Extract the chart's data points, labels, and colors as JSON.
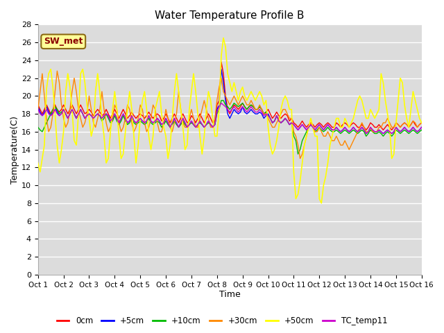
{
  "title": "Water Temperature Profile B",
  "xlabel": "Time",
  "ylabel": "Temperature(C)",
  "ylim": [
    0,
    28
  ],
  "xlim": [
    0,
    15
  ],
  "xtick_labels": [
    "Oct 1",
    "Oct 2",
    "Oct 3",
    "Oct 4",
    "Oct 5",
    "Oct 6",
    "Oct 7",
    "Oct 8",
    "Oct 9",
    "Oct 10",
    "Oct 11",
    "Oct 12",
    "Oct 13",
    "Oct 14",
    "Oct 15",
    "Oct 16"
  ],
  "ytick_values": [
    0,
    2,
    4,
    6,
    8,
    10,
    12,
    14,
    16,
    18,
    20,
    22,
    24,
    26,
    28
  ],
  "bg_color": "#dcdcdc",
  "grid_color": "#ffffff",
  "sw_met_label": "SW_met",
  "sw_met_text_color": "#8b0000",
  "sw_met_bg_color": "#ffff99",
  "sw_met_border_color": "#8b6914",
  "series_order": [
    "0cm",
    "+5cm",
    "+10cm",
    "+30cm",
    "+50cm",
    "TC_temp11"
  ],
  "colors": {
    "0cm": "#ff0000",
    "+5cm": "#0000ff",
    "+10cm": "#00bb00",
    "+30cm": "#ff8800",
    "+50cm": "#ffff00",
    "TC_temp11": "#cc00cc"
  },
  "linewidths": {
    "0cm": 1.0,
    "+5cm": 1.0,
    "+10cm": 1.0,
    "+30cm": 1.0,
    "+50cm": 1.2,
    "TC_temp11": 1.0
  },
  "data": {
    "t": [
      0.0,
      0.083,
      0.167,
      0.25,
      0.333,
      0.417,
      0.5,
      0.583,
      0.667,
      0.75,
      0.833,
      0.917,
      1.0,
      1.083,
      1.167,
      1.25,
      1.333,
      1.417,
      1.5,
      1.583,
      1.667,
      1.75,
      1.833,
      1.917,
      2.0,
      2.083,
      2.167,
      2.25,
      2.333,
      2.417,
      2.5,
      2.583,
      2.667,
      2.75,
      2.833,
      2.917,
      3.0,
      3.083,
      3.167,
      3.25,
      3.333,
      3.417,
      3.5,
      3.583,
      3.667,
      3.75,
      3.833,
      3.917,
      4.0,
      4.083,
      4.167,
      4.25,
      4.333,
      4.417,
      4.5,
      4.583,
      4.667,
      4.75,
      4.833,
      4.917,
      5.0,
      5.083,
      5.167,
      5.25,
      5.333,
      5.417,
      5.5,
      5.583,
      5.667,
      5.75,
      5.833,
      5.917,
      6.0,
      6.083,
      6.167,
      6.25,
      6.333,
      6.417,
      6.5,
      6.583,
      6.667,
      6.75,
      6.833,
      6.917,
      7.0,
      7.083,
      7.167,
      7.25,
      7.333,
      7.417,
      7.5,
      7.583,
      7.667,
      7.75,
      7.833,
      7.917,
      8.0,
      8.083,
      8.167,
      8.25,
      8.333,
      8.417,
      8.5,
      8.583,
      8.667,
      8.75,
      8.833,
      8.917,
      9.0,
      9.083,
      9.167,
      9.25,
      9.333,
      9.417,
      9.5,
      9.583,
      9.667,
      9.75,
      9.833,
      9.917,
      10.0,
      10.083,
      10.167,
      10.25,
      10.333,
      10.417,
      10.5,
      10.583,
      10.667,
      10.75,
      10.833,
      10.917,
      11.0,
      11.083,
      11.167,
      11.25,
      11.333,
      11.417,
      11.5,
      11.583,
      11.667,
      11.75,
      11.833,
      11.917,
      12.0,
      12.083,
      12.167,
      12.25,
      12.333,
      12.417,
      12.5,
      12.583,
      12.667,
      12.75,
      12.833,
      12.917,
      13.0,
      13.083,
      13.167,
      13.25,
      13.333,
      13.417,
      13.5,
      13.583,
      13.667,
      13.75,
      13.833,
      13.917,
      14.0,
      14.083,
      14.167,
      14.25,
      14.333,
      14.417,
      14.5,
      14.583,
      14.667,
      14.75,
      14.833,
      14.917,
      15.0
    ],
    "0cm": [
      19.0,
      18.5,
      18.0,
      18.5,
      19.0,
      18.5,
      18.0,
      18.5,
      19.0,
      18.5,
      18.2,
      18.5,
      19.0,
      18.5,
      18.0,
      18.5,
      19.0,
      18.5,
      18.0,
      18.5,
      19.0,
      18.5,
      18.0,
      18.2,
      18.5,
      18.2,
      17.8,
      18.2,
      18.5,
      18.2,
      17.8,
      18.0,
      18.5,
      18.0,
      17.5,
      18.0,
      18.5,
      18.0,
      17.5,
      18.0,
      18.5,
      18.0,
      17.5,
      17.8,
      18.2,
      17.8,
      17.5,
      17.8,
      18.0,
      17.8,
      17.5,
      17.8,
      18.2,
      17.8,
      17.5,
      17.8,
      18.0,
      17.8,
      17.2,
      17.5,
      18.0,
      17.5,
      17.0,
      17.5,
      18.0,
      17.5,
      17.0,
      17.5,
      18.0,
      17.5,
      17.0,
      17.2,
      17.8,
      17.5,
      17.0,
      17.5,
      18.0,
      17.5,
      17.0,
      17.5,
      18.0,
      17.5,
      17.0,
      17.2,
      19.0,
      19.5,
      23.8,
      22.5,
      20.0,
      18.5,
      18.0,
      18.5,
      19.0,
      18.8,
      18.5,
      18.8,
      19.2,
      18.8,
      18.5,
      18.8,
      19.0,
      18.8,
      18.5,
      18.5,
      18.8,
      18.5,
      18.0,
      18.2,
      18.5,
      18.0,
      17.5,
      17.8,
      18.2,
      17.8,
      17.5,
      17.8,
      18.0,
      17.8,
      17.2,
      17.5,
      17.0,
      16.8,
      16.5,
      16.8,
      17.2,
      16.8,
      16.5,
      16.8,
      17.0,
      16.8,
      16.5,
      16.8,
      17.0,
      16.8,
      16.5,
      16.8,
      17.0,
      16.8,
      16.5,
      16.5,
      17.0,
      16.8,
      16.5,
      16.8,
      17.0,
      16.8,
      16.5,
      16.8,
      17.0,
      16.8,
      16.5,
      16.5,
      16.8,
      16.5,
      16.2,
      16.5,
      17.0,
      16.8,
      16.5,
      16.5,
      16.8,
      16.5,
      16.2,
      16.5,
      16.8,
      16.5,
      16.2,
      16.5,
      17.0,
      16.8,
      16.5,
      16.8,
      17.0,
      16.8,
      16.5,
      16.8,
      17.2,
      16.8,
      16.5,
      16.8,
      17.0
    ],
    "+5cm": [
      18.8,
      18.2,
      17.8,
      18.2,
      18.8,
      18.2,
      17.8,
      18.2,
      18.8,
      18.2,
      17.8,
      18.0,
      18.5,
      18.0,
      17.5,
      18.0,
      18.5,
      18.0,
      17.5,
      18.0,
      18.5,
      18.0,
      17.5,
      17.8,
      18.0,
      17.8,
      17.5,
      17.8,
      18.0,
      17.8,
      17.5,
      17.8,
      18.0,
      17.8,
      17.2,
      17.5,
      18.0,
      17.5,
      17.0,
      17.5,
      18.0,
      17.5,
      17.0,
      17.2,
      17.8,
      17.2,
      17.0,
      17.2,
      17.5,
      17.2,
      17.0,
      17.2,
      17.8,
      17.2,
      17.0,
      17.2,
      17.5,
      17.2,
      16.8,
      17.0,
      17.5,
      17.0,
      16.5,
      17.0,
      17.5,
      17.0,
      16.5,
      17.0,
      17.5,
      17.0,
      16.5,
      16.8,
      17.2,
      16.8,
      16.5,
      16.8,
      17.2,
      16.8,
      16.5,
      16.8,
      17.2,
      16.8,
      16.5,
      16.8,
      18.5,
      19.0,
      23.0,
      21.5,
      19.5,
      18.0,
      17.5,
      18.0,
      18.5,
      18.2,
      18.0,
      18.2,
      18.8,
      18.2,
      18.0,
      18.2,
      18.5,
      18.2,
      18.0,
      18.0,
      18.2,
      18.0,
      17.5,
      17.8,
      18.0,
      17.5,
      17.0,
      17.2,
      17.8,
      17.2,
      17.0,
      17.2,
      17.5,
      17.2,
      16.8,
      17.0,
      16.8,
      16.5,
      16.2,
      16.5,
      16.8,
      16.5,
      16.2,
      16.5,
      16.8,
      16.5,
      16.2,
      16.5,
      16.8,
      16.5,
      16.2,
      16.5,
      16.8,
      16.5,
      16.2,
      16.2,
      16.5,
      16.2,
      16.0,
      16.2,
      16.5,
      16.2,
      16.0,
      16.2,
      16.5,
      16.2,
      16.0,
      16.2,
      16.5,
      16.2,
      15.8,
      16.0,
      16.5,
      16.2,
      16.0,
      16.0,
      16.2,
      16.0,
      15.8,
      16.0,
      16.2,
      16.0,
      15.8,
      16.0,
      16.5,
      16.2,
      16.0,
      16.2,
      16.5,
      16.2,
      16.0,
      16.2,
      16.5,
      16.2,
      16.0,
      16.2,
      16.5
    ],
    "+10cm": [
      16.5,
      16.2,
      16.0,
      16.5,
      17.0,
      17.5,
      18.0,
      18.5,
      18.8,
      18.5,
      18.0,
      18.2,
      18.5,
      18.0,
      17.5,
      18.0,
      18.5,
      18.0,
      17.5,
      18.0,
      18.5,
      18.0,
      17.5,
      17.8,
      18.0,
      17.8,
      17.5,
      17.8,
      18.0,
      17.8,
      17.2,
      17.5,
      18.0,
      17.5,
      17.0,
      17.2,
      17.8,
      17.2,
      16.8,
      17.2,
      17.8,
      17.2,
      16.8,
      17.0,
      17.5,
      17.0,
      16.8,
      17.0,
      17.2,
      17.0,
      16.8,
      17.0,
      17.5,
      17.0,
      16.8,
      17.0,
      17.2,
      17.0,
      16.5,
      16.8,
      17.2,
      16.8,
      16.5,
      16.8,
      17.2,
      16.8,
      16.5,
      16.8,
      17.2,
      16.8,
      16.5,
      16.8,
      17.0,
      16.8,
      16.5,
      16.8,
      17.0,
      16.8,
      16.5,
      16.8,
      17.0,
      16.8,
      16.5,
      16.8,
      18.0,
      18.5,
      19.5,
      19.5,
      19.0,
      18.8,
      18.5,
      18.8,
      19.2,
      19.0,
      18.8,
      19.0,
      19.2,
      18.8,
      18.5,
      18.8,
      19.0,
      18.8,
      18.5,
      18.5,
      18.8,
      18.5,
      18.0,
      18.2,
      17.8,
      17.5,
      17.0,
      17.2,
      17.8,
      17.2,
      17.0,
      17.2,
      17.5,
      17.2,
      16.8,
      17.0,
      15.5,
      15.0,
      13.5,
      14.0,
      15.0,
      15.5,
      16.0,
      16.5,
      16.8,
      16.5,
      16.0,
      16.2,
      16.5,
      16.2,
      16.0,
      16.2,
      16.5,
      16.2,
      16.0,
      16.0,
      16.2,
      16.0,
      15.8,
      16.0,
      16.2,
      16.0,
      15.8,
      16.0,
      16.2,
      16.0,
      15.8,
      16.0,
      16.2,
      16.0,
      15.5,
      15.8,
      16.2,
      16.0,
      15.8,
      15.8,
      16.0,
      15.8,
      15.5,
      15.8,
      16.0,
      15.8,
      15.5,
      15.8,
      16.2,
      16.0,
      15.8,
      16.0,
      16.2,
      16.0,
      15.8,
      16.0,
      16.2,
      16.0,
      15.8,
      16.0,
      16.2
    ],
    "+30cm": [
      18.5,
      20.5,
      22.5,
      20.0,
      17.5,
      16.0,
      16.5,
      18.0,
      20.5,
      22.8,
      21.5,
      19.0,
      17.5,
      16.5,
      17.0,
      18.5,
      20.5,
      22.0,
      20.5,
      18.5,
      17.5,
      16.5,
      17.0,
      18.0,
      20.0,
      18.5,
      17.0,
      16.5,
      17.5,
      18.5,
      20.5,
      18.5,
      17.0,
      16.0,
      16.5,
      17.5,
      19.0,
      18.5,
      17.0,
      16.0,
      16.5,
      17.5,
      19.0,
      18.5,
      17.0,
      16.0,
      16.5,
      17.5,
      19.0,
      18.5,
      17.0,
      16.0,
      16.5,
      17.5,
      19.0,
      18.5,
      17.0,
      16.0,
      16.0,
      17.0,
      18.5,
      17.5,
      16.5,
      16.0,
      17.0,
      18.0,
      20.5,
      18.5,
      17.0,
      16.5,
      16.5,
      17.5,
      18.5,
      17.5,
      16.5,
      16.5,
      17.5,
      18.5,
      19.5,
      18.5,
      17.5,
      16.5,
      16.5,
      17.5,
      19.5,
      21.0,
      22.0,
      20.5,
      20.0,
      19.5,
      19.0,
      19.5,
      20.0,
      19.5,
      19.0,
      19.5,
      20.0,
      19.5,
      19.0,
      19.0,
      19.5,
      19.0,
      18.5,
      18.5,
      19.0,
      18.5,
      18.0,
      18.0,
      17.5,
      17.0,
      16.5,
      16.5,
      17.0,
      17.5,
      18.0,
      18.5,
      18.5,
      18.0,
      17.5,
      17.5,
      16.0,
      15.5,
      14.5,
      13.0,
      13.5,
      14.5,
      15.5,
      16.5,
      17.0,
      16.5,
      16.0,
      16.0,
      16.5,
      16.0,
      15.5,
      15.5,
      16.0,
      15.5,
      15.0,
      15.0,
      15.5,
      15.0,
      14.5,
      14.5,
      15.0,
      14.5,
      14.0,
      14.5,
      15.0,
      15.5,
      16.0,
      16.5,
      17.0,
      16.5,
      16.0,
      16.0,
      16.5,
      16.0,
      16.0,
      16.0,
      16.5,
      16.5,
      17.0,
      17.0,
      17.5,
      17.0,
      16.5,
      16.5,
      17.0,
      16.8,
      16.5,
      16.8,
      17.0,
      16.8,
      16.5,
      16.8,
      17.2,
      17.0,
      16.5,
      16.8,
      17.0
    ],
    "+50cm": [
      12.5,
      11.5,
      13.0,
      14.5,
      20.8,
      22.5,
      23.0,
      21.0,
      18.0,
      14.5,
      12.5,
      14.0,
      16.0,
      20.5,
      22.5,
      21.0,
      18.5,
      15.0,
      14.5,
      18.0,
      22.5,
      23.0,
      21.5,
      19.0,
      17.5,
      15.5,
      16.5,
      20.5,
      22.5,
      20.5,
      17.5,
      15.5,
      12.5,
      13.0,
      16.0,
      18.5,
      20.5,
      18.5,
      15.5,
      13.0,
      13.5,
      16.0,
      18.5,
      20.5,
      18.5,
      15.5,
      12.5,
      14.5,
      17.5,
      19.5,
      20.5,
      18.5,
      15.5,
      14.0,
      15.5,
      18.5,
      19.5,
      20.5,
      18.0,
      16.5,
      15.5,
      13.0,
      14.5,
      17.5,
      20.5,
      22.5,
      20.5,
      18.5,
      16.5,
      14.0,
      14.5,
      18.5,
      20.5,
      22.5,
      20.5,
      18.0,
      15.5,
      13.5,
      15.5,
      18.5,
      20.5,
      19.5,
      17.5,
      15.5,
      15.5,
      18.5,
      24.5,
      26.5,
      25.5,
      22.5,
      21.5,
      20.5,
      21.5,
      20.5,
      19.5,
      20.5,
      21.0,
      20.0,
      19.5,
      20.0,
      20.5,
      20.0,
      19.5,
      20.0,
      20.5,
      20.0,
      19.0,
      19.5,
      16.5,
      14.5,
      13.5,
      14.0,
      15.0,
      16.5,
      18.5,
      19.5,
      20.0,
      19.5,
      18.5,
      18.5,
      11.5,
      8.5,
      9.0,
      10.5,
      12.5,
      14.5,
      15.5,
      16.5,
      17.5,
      16.5,
      15.5,
      15.5,
      8.5,
      8.0,
      10.0,
      11.0,
      12.5,
      14.5,
      15.5,
      16.5,
      17.5,
      17.5,
      16.5,
      16.5,
      17.5,
      17.0,
      16.5,
      17.0,
      17.5,
      18.5,
      19.5,
      20.0,
      19.5,
      18.5,
      17.5,
      17.5,
      18.5,
      18.0,
      17.5,
      18.0,
      18.5,
      22.5,
      21.5,
      19.5,
      18.0,
      16.5,
      13.0,
      13.5,
      17.0,
      19.5,
      22.0,
      21.5,
      19.0,
      17.5,
      16.5,
      18.5,
      20.5,
      19.5,
      18.5,
      17.5,
      17.0
    ],
    "TC_temp11": [
      18.5,
      18.0,
      17.8,
      18.0,
      18.5,
      18.0,
      17.8,
      18.0,
      18.5,
      18.0,
      17.8,
      18.0,
      18.5,
      18.0,
      17.5,
      18.0,
      18.5,
      18.0,
      17.5,
      18.0,
      18.5,
      18.0,
      17.5,
      17.8,
      18.0,
      17.8,
      17.5,
      17.8,
      18.0,
      17.8,
      17.5,
      17.8,
      18.0,
      17.8,
      17.2,
      17.5,
      18.0,
      17.5,
      17.0,
      17.5,
      18.0,
      17.5,
      17.0,
      17.2,
      17.8,
      17.2,
      17.0,
      17.2,
      17.5,
      17.2,
      17.0,
      17.2,
      17.8,
      17.2,
      17.0,
      17.2,
      17.5,
      17.2,
      16.8,
      17.0,
      17.5,
      17.0,
      16.5,
      17.0,
      17.5,
      17.0,
      16.5,
      17.0,
      17.5,
      17.0,
      16.5,
      16.8,
      17.2,
      16.8,
      16.5,
      16.8,
      17.2,
      16.8,
      16.5,
      16.8,
      17.2,
      16.8,
      16.5,
      16.8,
      18.2,
      18.8,
      19.2,
      19.0,
      18.8,
      18.5,
      18.2,
      18.5,
      18.8,
      18.5,
      18.2,
      18.5,
      18.8,
      18.5,
      18.2,
      18.5,
      18.8,
      18.5,
      18.2,
      18.2,
      18.5,
      18.2,
      17.8,
      18.0,
      17.8,
      17.5,
      17.0,
      17.2,
      17.8,
      17.2,
      17.0,
      17.2,
      17.5,
      17.2,
      16.8,
      17.0,
      16.8,
      16.5,
      16.2,
      16.5,
      16.8,
      16.5,
      16.2,
      16.5,
      16.8,
      16.5,
      16.2,
      16.5,
      16.8,
      16.5,
      16.2,
      16.5,
      16.8,
      16.5,
      16.2,
      16.2,
      16.5,
      16.2,
      16.0,
      16.2,
      16.5,
      16.2,
      16.0,
      16.2,
      16.5,
      16.2,
      16.0,
      16.2,
      16.5,
      16.2,
      15.8,
      16.0,
      16.5,
      16.2,
      16.0,
      16.0,
      16.2,
      16.0,
      15.8,
      16.0,
      16.2,
      16.0,
      15.8,
      16.0,
      16.5,
      16.2,
      16.0,
      16.2,
      16.5,
      16.2,
      16.0,
      16.2,
      16.5,
      16.2,
      16.0,
      16.2,
      16.5
    ]
  }
}
